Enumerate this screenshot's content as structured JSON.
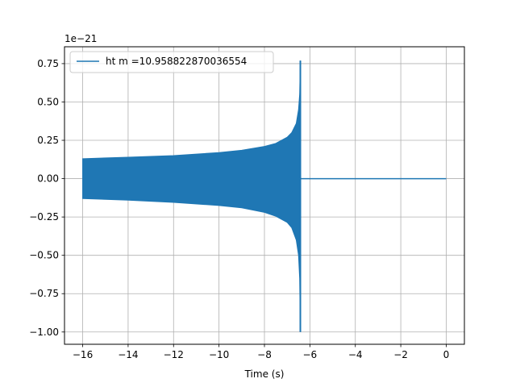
{
  "chart_data": {
    "type": "line",
    "title": "",
    "xlabel": "Time (s)",
    "ylabel": "",
    "offset_label": "1e−21",
    "xlim": [
      -16.8,
      0.8
    ],
    "ylim": [
      -1.08,
      0.86
    ],
    "x_ticks": [
      -16,
      -14,
      -12,
      -10,
      -8,
      -6,
      -4,
      -2,
      0
    ],
    "x_tick_labels": [
      "−16",
      "−14",
      "−12",
      "−10",
      "−8",
      "−6",
      "−4",
      "−2",
      "0"
    ],
    "y_ticks": [
      -1.0,
      -0.75,
      -0.5,
      -0.25,
      0.0,
      0.25,
      0.5,
      0.75
    ],
    "y_tick_labels": [
      "−1.00",
      "−0.75",
      "−0.50",
      "−0.25",
      "0.00",
      "0.25",
      "0.50",
      "0.75"
    ],
    "grid": true,
    "legend_position": "top-left",
    "series": [
      {
        "name": "ht m =10.958822870036554",
        "color": "#1f77b4",
        "envelope": {
          "time": [
            -16.0,
            -14.0,
            -12.0,
            -10.0,
            -9.0,
            -8.0,
            -7.5,
            -7.0,
            -6.8,
            -6.6,
            -6.5,
            -6.45,
            -6.42
          ],
          "upper": [
            0.13,
            0.14,
            0.15,
            0.17,
            0.185,
            0.21,
            0.23,
            0.27,
            0.3,
            0.36,
            0.45,
            0.55,
            0.77
          ],
          "lower": [
            -0.13,
            -0.14,
            -0.155,
            -0.175,
            -0.19,
            -0.22,
            -0.245,
            -0.285,
            -0.32,
            -0.4,
            -0.5,
            -0.65,
            -1.0
          ]
        },
        "after_merger": {
          "x": [
            -6.4,
            0.0
          ],
          "y": [
            0.0,
            0.0
          ]
        }
      }
    ]
  }
}
